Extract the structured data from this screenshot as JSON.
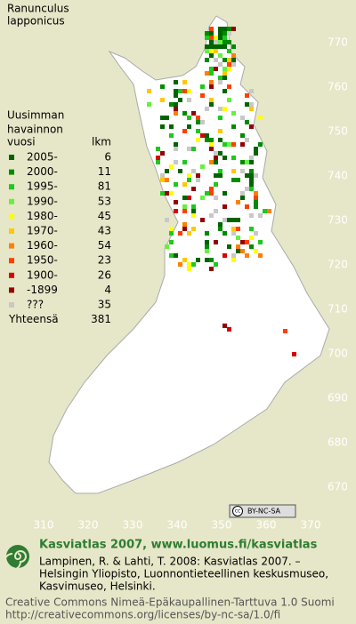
{
  "title": [
    "Ranunculus",
    "lapponicus"
  ],
  "legend": {
    "header": [
      "Uusimman",
      "havainnon",
      "vuosi",
      "lkm"
    ],
    "rows": [
      {
        "label": "2005-",
        "count": 6,
        "color": "#006400"
      },
      {
        "label": "2000-",
        "count": 11,
        "color": "#008a00"
      },
      {
        "label": "1995-",
        "count": 81,
        "color": "#1ec81e"
      },
      {
        "label": "1990-",
        "count": 53,
        "color": "#66f040"
      },
      {
        "label": "1980-",
        "count": 45,
        "color": "#ffff00"
      },
      {
        "label": "1970-",
        "count": 43,
        "color": "#ffc800"
      },
      {
        "label": "1960-",
        "count": 54,
        "color": "#ff8000"
      },
      {
        "label": "1950-",
        "count": 23,
        "color": "#ff4000"
      },
      {
        "label": "1900-",
        "count": 26,
        "color": "#d80000"
      },
      {
        "label": "-1899",
        "count": 4,
        "color": "#960000"
      },
      {
        "label": "???",
        "count": 35,
        "color": "#c8c8c8"
      }
    ],
    "total_label": "Yhteensä",
    "total": 381
  },
  "y_labels": [
    770,
    760,
    750,
    740,
    730,
    720,
    710,
    700,
    690,
    680,
    670
  ],
  "x_labels": [
    310,
    320,
    330,
    340,
    350,
    360,
    370
  ],
  "badge": [
    "cc",
    "BY-NC-SA"
  ],
  "footer": {
    "heading": "Kasviatlas 2007, www.luomus.fi/kasviatlas",
    "citation": [
      "Lampinen, R. & Lahti, T. 2008: Kasviatlas 2007. –",
      "Helsingin Yliopisto, Luonnontieteellinen keskusmuseo,",
      "Kasvimuseo, Helsinki."
    ],
    "license": [
      "Creative Commons Nimeä-Epäkaupallinen-Tarttuva 1.0 Suomi",
      "http://creativecommons.org/licenses/by-nc-sa/1.0/fi"
    ]
  }
}
